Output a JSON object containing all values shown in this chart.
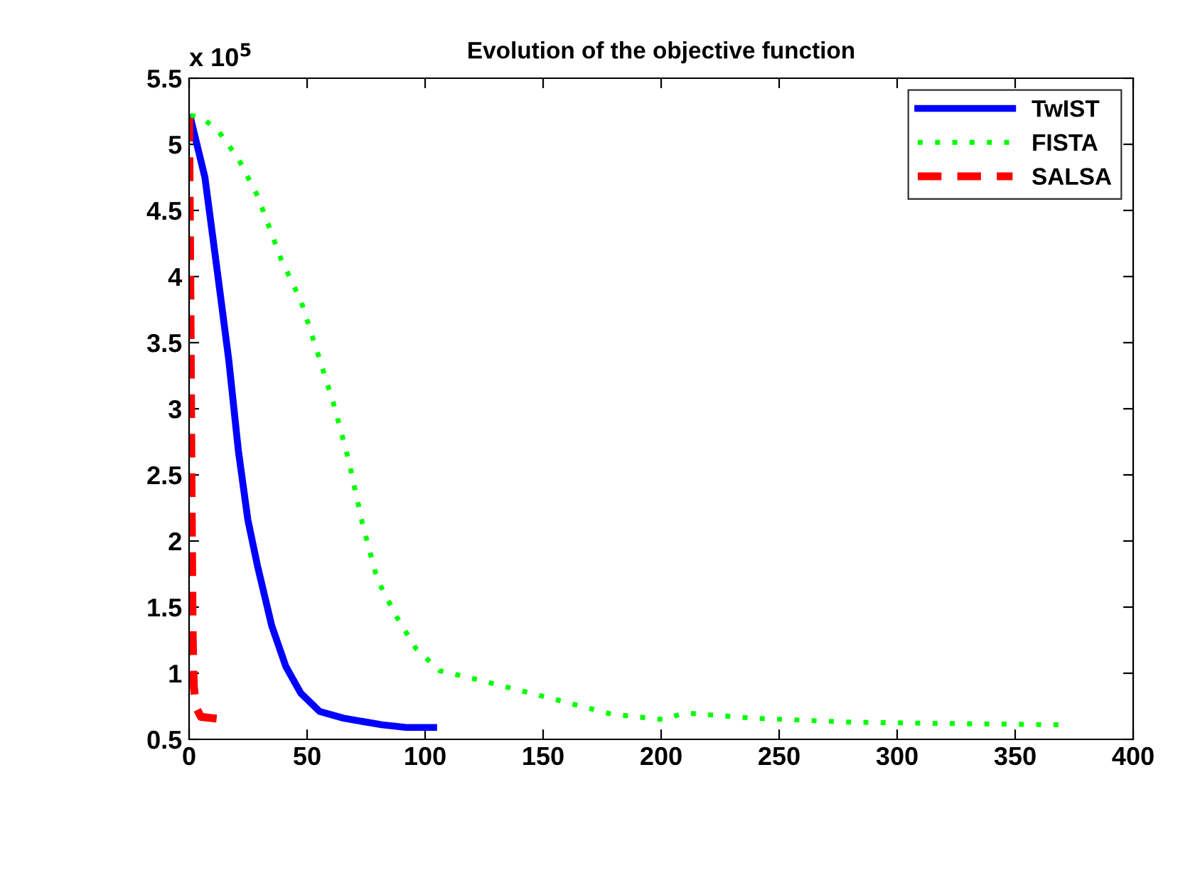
{
  "chart_data": {
    "type": "line",
    "title": "Evolution of the objective function",
    "annotations": [
      "x 10$^{5}$"
    ],
    "xlim": [
      0,
      400
    ],
    "xticks": [
      0,
      50,
      100,
      150,
      200,
      250,
      300,
      350,
      400
    ],
    "ylim": [
      0.5,
      5.5
    ],
    "yticks": [
      0.5,
      1,
      1.5,
      2,
      2.5,
      3,
      3.5,
      4,
      4.5,
      5,
      5.5
    ],
    "grid": false,
    "legend": "top right",
    "series": [
      {
        "name": "TwIST",
        "color": "#0000ff",
        "line_style": "solid",
        "x": [
          0.6,
          6.7,
          11.8,
          16.8,
          20.9,
          24.9,
          29,
          35,
          41,
          47.3,
          55.4,
          65.5,
          81.7,
          92,
          103.6
        ],
        "values": [
          5.2,
          4.75,
          4.06,
          3.37,
          2.68,
          2.16,
          1.81,
          1.36,
          1.05,
          0.85,
          0.71,
          0.66,
          0.61,
          0.59,
          0.59
        ]
      },
      {
        "name": "FISTA",
        "color": "#00ff00",
        "line_style": "dotted",
        "x": [
          0.6,
          5.7,
          12.8,
          20.9,
          29,
          39,
          47.3,
          55.4,
          61.5,
          67.6,
          73.6,
          79.7,
          87.8,
          96,
          106,
          118,
          127,
          149,
          179,
          201,
          210,
          239,
          280,
          320,
          371
        ],
        "values": [
          5.22,
          5.2,
          5.09,
          4.89,
          4.61,
          4.13,
          3.82,
          3.37,
          3.02,
          2.61,
          2.12,
          1.71,
          1.43,
          1.19,
          1.02,
          0.97,
          0.93,
          0.83,
          0.69,
          0.65,
          0.7,
          0.66,
          0.63,
          0.62,
          0.61
        ]
      },
      {
        "name": "SALSA",
        "color": "#ff0000",
        "line_style": "dashed",
        "x": [
          0,
          0.5,
          1,
          1.5,
          2,
          3,
          5,
          10,
          15
        ],
        "values": [
          5.2,
          4.0,
          2.5,
          1.3,
          0.9,
          0.74,
          0.67,
          0.66,
          0.65
        ]
      }
    ]
  }
}
